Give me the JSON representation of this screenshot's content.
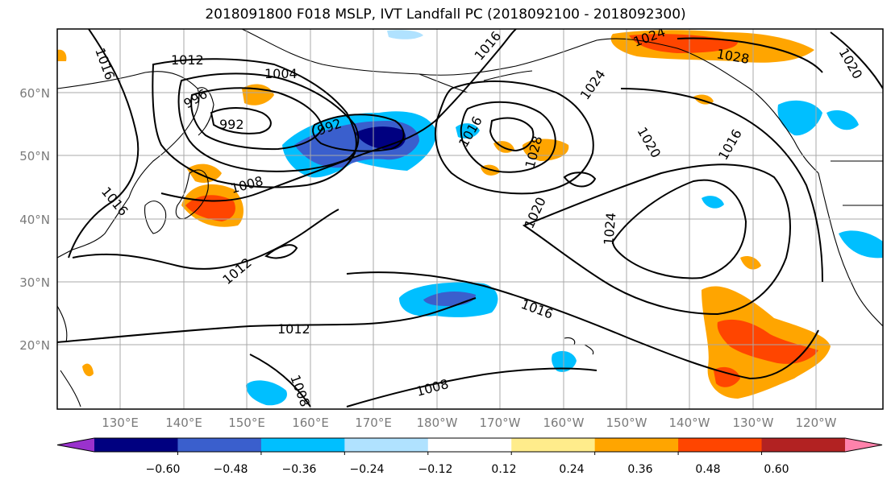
{
  "title": "2018091800 F018 MSLP, IVT Landfall PC (2018092100 - 2018092300)",
  "lat_labels": [
    "60°N",
    "50°N",
    "40°N",
    "30°N",
    "20°N"
  ],
  "lon_labels": [
    "130°E",
    "140°E",
    "150°E",
    "160°E",
    "170°E",
    "180°W",
    "170°W",
    "160°W",
    "150°W",
    "140°W",
    "130°W",
    "120°W"
  ],
  "isobar_labels": [
    "1016",
    "1012",
    "1004",
    "996",
    "992",
    "992",
    "1016",
    "1024",
    "1028",
    "1020",
    "1016",
    "1028",
    "1020",
    "1024",
    "1020",
    "1016",
    "1008",
    "1016",
    "1012",
    "1012",
    "1016",
    "1008",
    "1008",
    "1024"
  ],
  "colorbar": {
    "ticks": [
      "−0.60",
      "−0.48",
      "−0.36",
      "−0.24",
      "−0.12",
      "0.12",
      "0.24",
      "0.36",
      "0.48",
      "0.60"
    ],
    "colors": [
      "#9a32cd",
      "#000080",
      "#3a5fcd",
      "#00bfff",
      "#b0e2ff",
      "#ffffff",
      "#ffec8b",
      "#ffa500",
      "#ff4500",
      "#b22222",
      "#ff82ab"
    ]
  }
}
